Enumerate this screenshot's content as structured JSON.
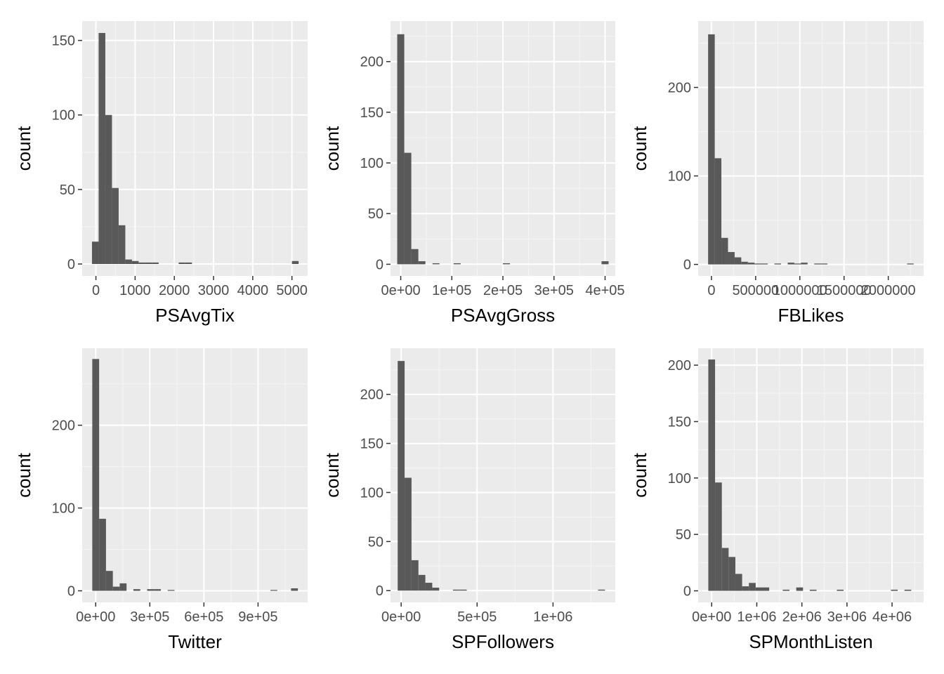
{
  "style": {
    "panel_bg": "#ebebeb",
    "grid_major": "#ffffff",
    "grid_minor": "#f5f5f5",
    "bar_fill": "#595959",
    "tick_color": "#333333"
  },
  "chart_data": [
    {
      "type": "histogram",
      "xlabel": "PSAvgTix",
      "ylabel": "count",
      "bin_width": 170,
      "bins": [
        {
          "x0": -100,
          "x1": 70,
          "count": 15
        },
        {
          "x0": 70,
          "x1": 240,
          "count": 155
        },
        {
          "x0": 240,
          "x1": 410,
          "count": 100
        },
        {
          "x0": 410,
          "x1": 580,
          "count": 51
        },
        {
          "x0": 580,
          "x1": 750,
          "count": 26
        },
        {
          "x0": 750,
          "x1": 920,
          "count": 3
        },
        {
          "x0": 920,
          "x1": 1090,
          "count": 2
        },
        {
          "x0": 1090,
          "x1": 1260,
          "count": 1
        },
        {
          "x0": 1260,
          "x1": 1430,
          "count": 1
        },
        {
          "x0": 1430,
          "x1": 1600,
          "count": 1
        },
        {
          "x0": 2110,
          "x1": 2280,
          "count": 1
        },
        {
          "x0": 2280,
          "x1": 2450,
          "count": 1
        },
        {
          "x0": 5000,
          "x1": 5170,
          "count": 2
        }
      ],
      "xlim": [
        -350,
        5400
      ],
      "ylim": [
        -8,
        163
      ],
      "xticks": [
        0,
        1000,
        2000,
        3000,
        4000,
        5000
      ],
      "xtick_labels": [
        "0",
        "1000",
        "2000",
        "3000",
        "4000",
        "5000"
      ],
      "yticks": [
        0,
        50,
        100,
        150
      ],
      "ytick_labels": [
        "0",
        "50",
        "100",
        "150"
      ]
    },
    {
      "type": "histogram",
      "xlabel": "PSAvgGross",
      "ylabel": "count",
      "bin_width": 13793,
      "bins": [
        {
          "x0": -6897,
          "x1": 6897,
          "count": 227
        },
        {
          "x0": 6897,
          "x1": 20690,
          "count": 110
        },
        {
          "x0": 20690,
          "x1": 34483,
          "count": 15
        },
        {
          "x0": 34483,
          "x1": 48276,
          "count": 3
        },
        {
          "x0": 62069,
          "x1": 75862,
          "count": 1
        },
        {
          "x0": 103448,
          "x1": 117241,
          "count": 1
        },
        {
          "x0": 200000,
          "x1": 213793,
          "count": 1
        },
        {
          "x0": 393103,
          "x1": 406897,
          "count": 3
        }
      ],
      "xlim": [
        -20000,
        420000
      ],
      "ylim": [
        -11.5,
        240
      ],
      "xticks": [
        0,
        100000,
        200000,
        300000,
        400000
      ],
      "xtick_labels": [
        "0e+00",
        "1e+05",
        "2e+05",
        "3e+05",
        "4e+05"
      ],
      "yticks": [
        0,
        50,
        100,
        150,
        200
      ],
      "ytick_labels": [
        "0",
        "50",
        "100",
        "150",
        "200"
      ]
    },
    {
      "type": "histogram",
      "xlabel": "FBLikes",
      "ylabel": "count",
      "bin_width": 75000,
      "bins": [
        {
          "x0": -37500,
          "x1": 37500,
          "count": 260
        },
        {
          "x0": 37500,
          "x1": 112500,
          "count": 120
        },
        {
          "x0": 112500,
          "x1": 187500,
          "count": 30
        },
        {
          "x0": 187500,
          "x1": 262500,
          "count": 14
        },
        {
          "x0": 262500,
          "x1": 337500,
          "count": 8
        },
        {
          "x0": 337500,
          "x1": 412500,
          "count": 3
        },
        {
          "x0": 412500,
          "x1": 487500,
          "count": 2
        },
        {
          "x0": 487500,
          "x1": 562500,
          "count": 1
        },
        {
          "x0": 562500,
          "x1": 637500,
          "count": 1
        },
        {
          "x0": 712500,
          "x1": 787500,
          "count": 1
        },
        {
          "x0": 862500,
          "x1": 937500,
          "count": 2
        },
        {
          "x0": 937500,
          "x1": 1012500,
          "count": 1
        },
        {
          "x0": 1012500,
          "x1": 1087500,
          "count": 2
        },
        {
          "x0": 1162500,
          "x1": 1237500,
          "count": 1
        },
        {
          "x0": 1237500,
          "x1": 1312500,
          "count": 1
        },
        {
          "x0": 2212500,
          "x1": 2287500,
          "count": 1
        }
      ],
      "xlim": [
        -150000,
        2400000
      ],
      "ylim": [
        -13,
        275
      ],
      "xticks": [
        0,
        500000,
        1000000,
        1500000,
        2000000
      ],
      "xtick_labels": [
        "0",
        "500000",
        "1000000",
        "1500000",
        "2000000"
      ],
      "yticks": [
        0,
        100,
        200
      ],
      "ytick_labels": [
        "0",
        "100",
        "200"
      ]
    },
    {
      "type": "histogram",
      "xlabel": "Twitter",
      "ylabel": "count",
      "bin_width": 38000,
      "bins": [
        {
          "x0": -19000,
          "x1": 19000,
          "count": 280
        },
        {
          "x0": 19000,
          "x1": 57000,
          "count": 87
        },
        {
          "x0": 57000,
          "x1": 95000,
          "count": 24
        },
        {
          "x0": 95000,
          "x1": 133000,
          "count": 5
        },
        {
          "x0": 133000,
          "x1": 171000,
          "count": 9
        },
        {
          "x0": 209000,
          "x1": 247000,
          "count": 2
        },
        {
          "x0": 285000,
          "x1": 323000,
          "count": 2
        },
        {
          "x0": 323000,
          "x1": 361000,
          "count": 2
        },
        {
          "x0": 399000,
          "x1": 437000,
          "count": 1
        },
        {
          "x0": 969000,
          "x1": 1007000,
          "count": 1
        },
        {
          "x0": 1083000,
          "x1": 1121000,
          "count": 3
        }
      ],
      "xlim": [
        -75000,
        1175000
      ],
      "ylim": [
        -14,
        293
      ],
      "xticks": [
        0,
        300000,
        600000,
        900000
      ],
      "xtick_labels": [
        "0e+00",
        "3e+05",
        "6e+05",
        "9e+05"
      ],
      "yticks": [
        0,
        100,
        200
      ],
      "ytick_labels": [
        "0",
        "100",
        "200"
      ]
    },
    {
      "type": "histogram",
      "xlabel": "SPFollowers",
      "ylabel": "count",
      "bin_width": 45500,
      "bins": [
        {
          "x0": -22750,
          "x1": 22750,
          "count": 234
        },
        {
          "x0": 22750,
          "x1": 68250,
          "count": 115
        },
        {
          "x0": 68250,
          "x1": 113750,
          "count": 31
        },
        {
          "x0": 113750,
          "x1": 159250,
          "count": 16
        },
        {
          "x0": 159250,
          "x1": 204750,
          "count": 8
        },
        {
          "x0": 204750,
          "x1": 250250,
          "count": 3
        },
        {
          "x0": 341000,
          "x1": 386500,
          "count": 1
        },
        {
          "x0": 386500,
          "x1": 432000,
          "count": 1
        },
        {
          "x0": 1296750,
          "x1": 1342250,
          "count": 1
        }
      ],
      "xlim": [
        -70000,
        1410000
      ],
      "ylim": [
        -12,
        247
      ],
      "xticks": [
        0,
        500000,
        1000000
      ],
      "xtick_labels": [
        "0e+00",
        "5e+05",
        "1e+06"
      ],
      "yticks": [
        0,
        50,
        100,
        150,
        200
      ],
      "ytick_labels": [
        "0",
        "50",
        "100",
        "150",
        "200"
      ]
    },
    {
      "type": "histogram",
      "xlabel": "SPMonthListen",
      "ylabel": "count",
      "bin_width": 150000,
      "bins": [
        {
          "x0": -75000,
          "x1": 75000,
          "count": 205
        },
        {
          "x0": 75000,
          "x1": 225000,
          "count": 96
        },
        {
          "x0": 225000,
          "x1": 375000,
          "count": 38
        },
        {
          "x0": 375000,
          "x1": 525000,
          "count": 30
        },
        {
          "x0": 525000,
          "x1": 675000,
          "count": 15
        },
        {
          "x0": 675000,
          "x1": 825000,
          "count": 4
        },
        {
          "x0": 825000,
          "x1": 975000,
          "count": 7
        },
        {
          "x0": 975000,
          "x1": 1125000,
          "count": 3
        },
        {
          "x0": 1125000,
          "x1": 1275000,
          "count": 3
        },
        {
          "x0": 1575000,
          "x1": 1725000,
          "count": 1
        },
        {
          "x0": 1875000,
          "x1": 2025000,
          "count": 3
        },
        {
          "x0": 2175000,
          "x1": 2325000,
          "count": 1
        },
        {
          "x0": 2775000,
          "x1": 2925000,
          "count": 1
        },
        {
          "x0": 3975000,
          "x1": 4125000,
          "count": 1
        },
        {
          "x0": 4275000,
          "x1": 4425000,
          "count": 1
        }
      ],
      "xlim": [
        -300000,
        4700000
      ],
      "ylim": [
        -10.25,
        215
      ],
      "xticks": [
        0,
        1000000,
        2000000,
        3000000,
        4000000
      ],
      "xtick_labels": [
        "0e+00",
        "1e+06",
        "2e+06",
        "3e+06",
        "4e+06"
      ],
      "yticks": [
        0,
        50,
        100,
        150,
        200
      ],
      "ytick_labels": [
        "0",
        "50",
        "100",
        "150",
        "200"
      ]
    }
  ]
}
